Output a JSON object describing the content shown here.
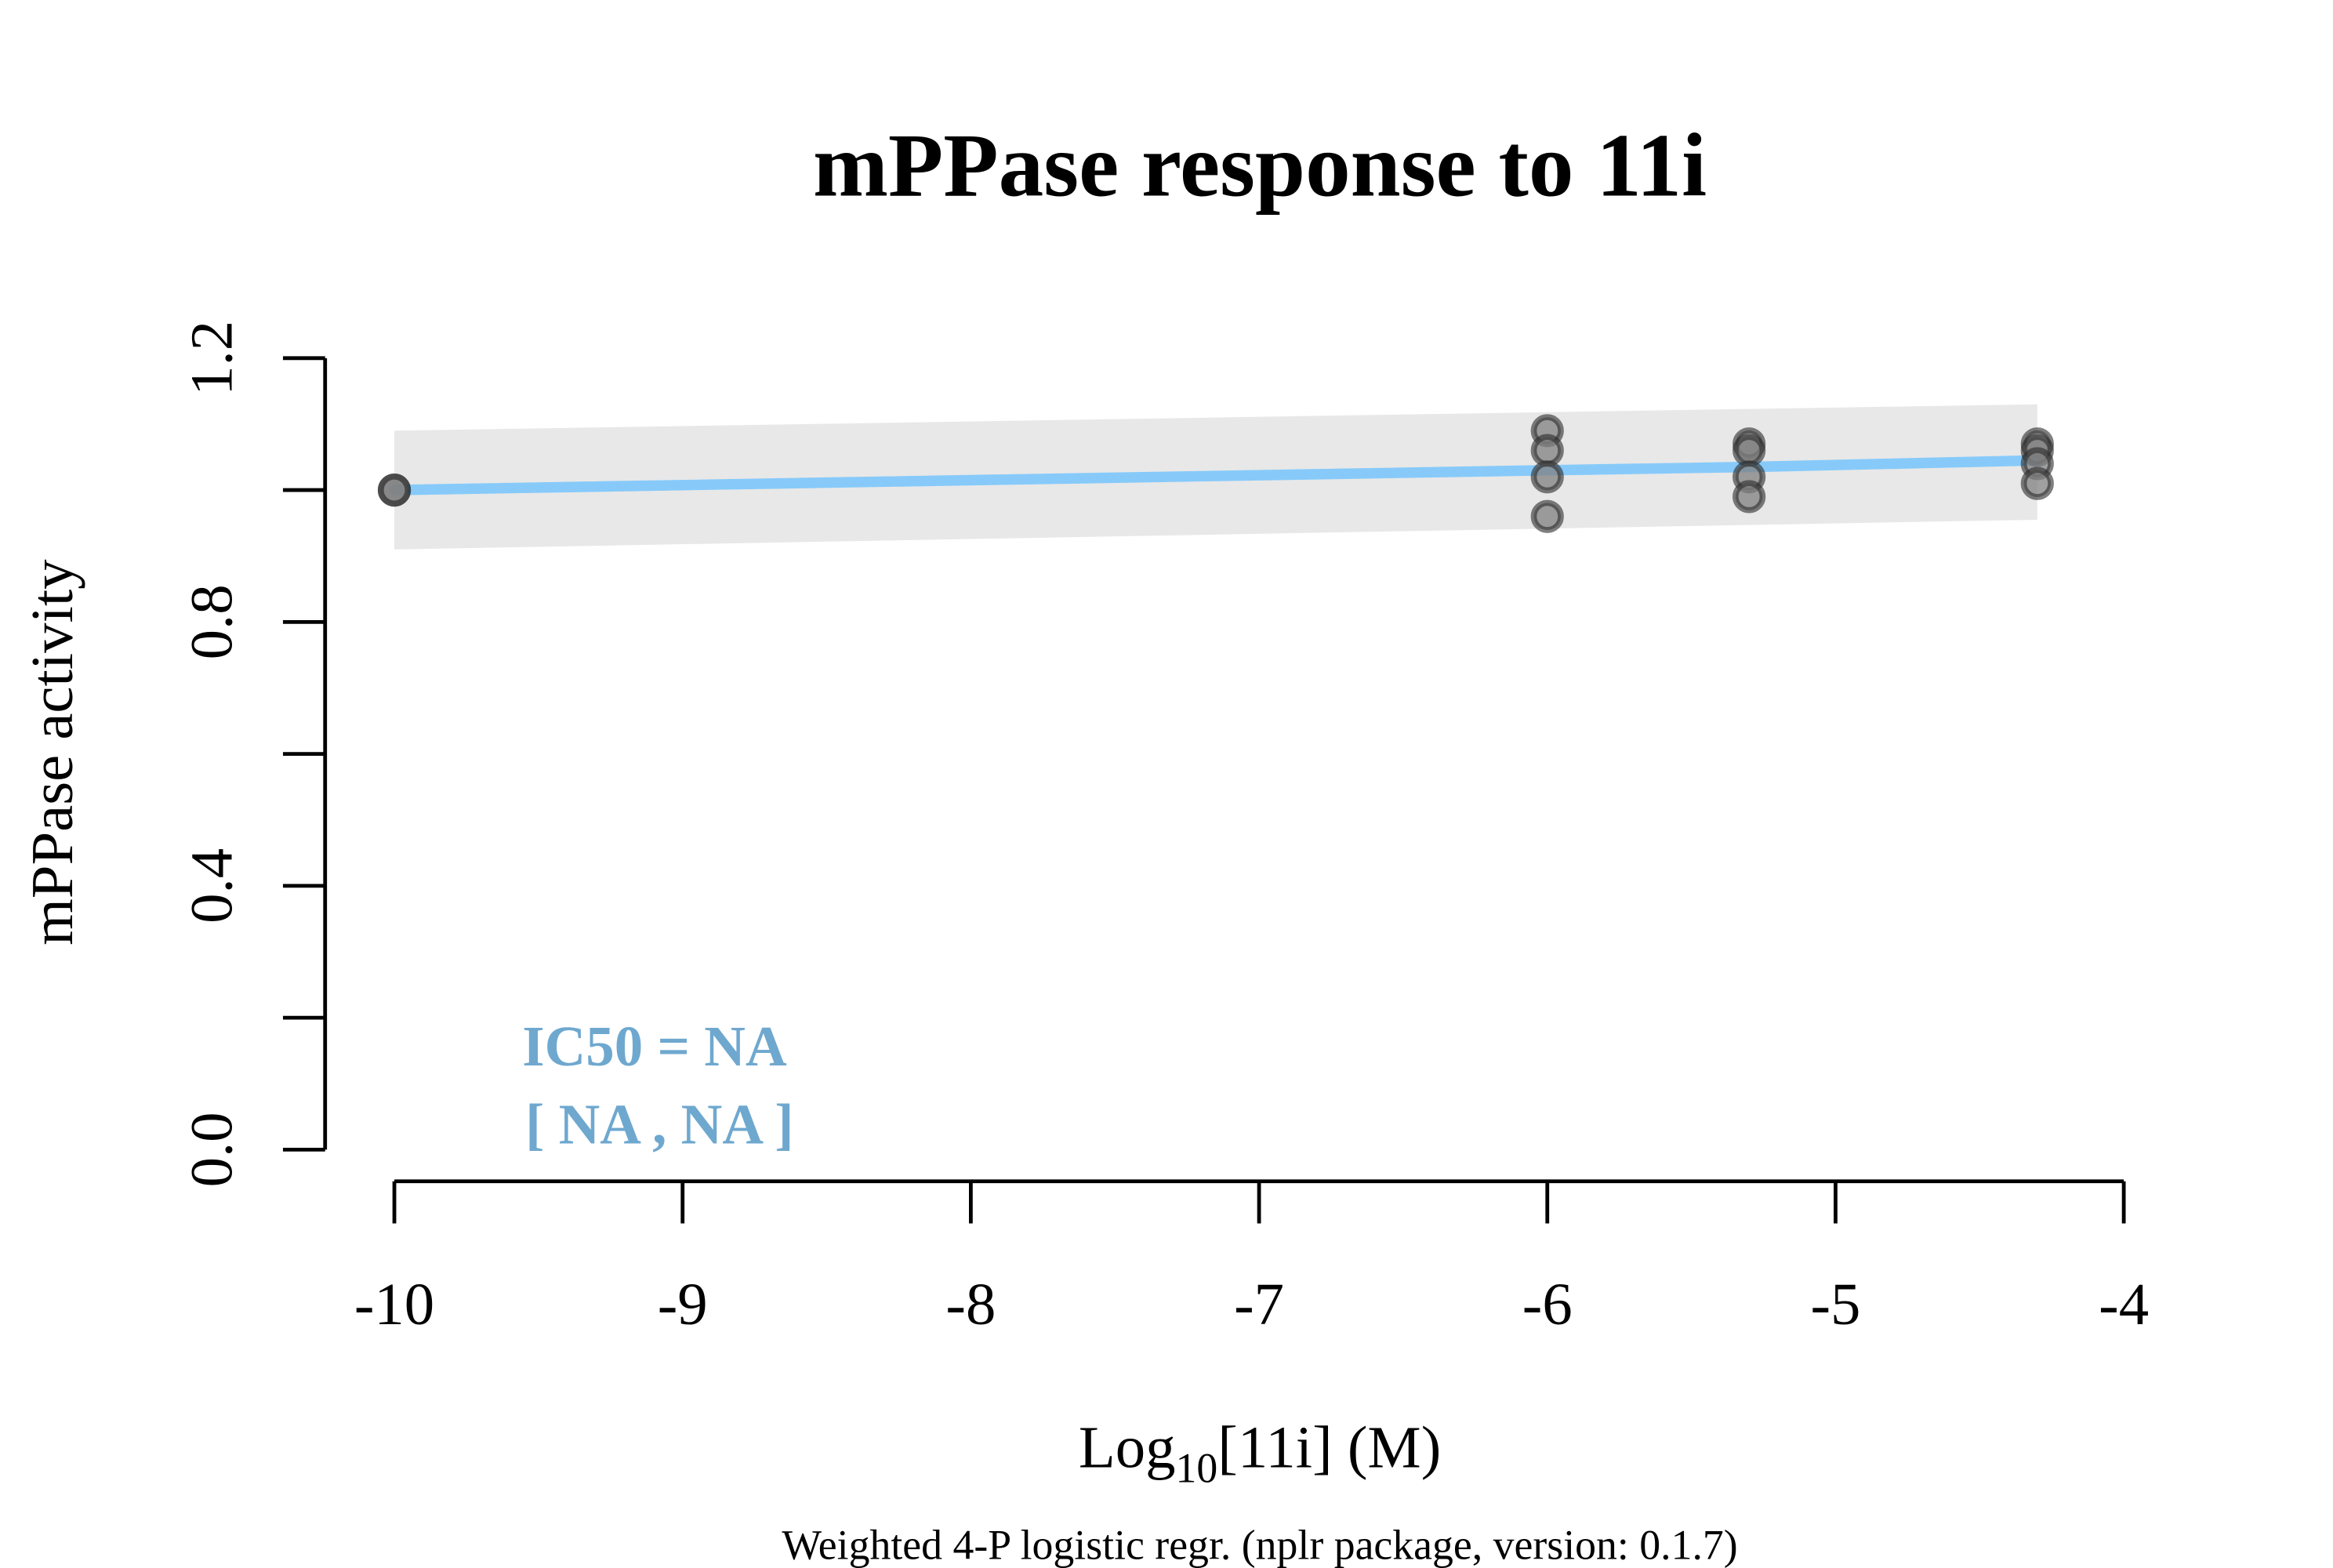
{
  "chart_data": {
    "type": "scatter",
    "title": "mPPase response to 11i",
    "xlabel": {
      "prefix": "Log",
      "subscript": "10",
      "suffix": "[11i] (M)"
    },
    "ylabel": "mPPase activity",
    "footnote": "Weighted 4-P logistic regr. (nplr package, version: 0.1.7)",
    "annotation": {
      "line1": "IC50 = NA",
      "line2": "[ NA , NA ]",
      "color": "#6fa8cf"
    },
    "xlim": [
      -10,
      -4
    ],
    "ylim": [
      0.0,
      1.2
    ],
    "x_ticks": [
      -10,
      -9,
      -8,
      -7,
      -6,
      -5,
      -4
    ],
    "x_tick_labels": [
      "-10",
      "-9",
      "-8",
      "-7",
      "-6",
      "-5",
      "-4"
    ],
    "y_ticks": [
      0.0,
      0.2,
      0.4,
      0.6,
      0.8,
      1.0,
      1.2
    ],
    "y_tick_labels": [
      "0.0",
      "",
      "0.4",
      "",
      "0.8",
      "",
      "1.2"
    ],
    "grid": false,
    "points": [
      {
        "x": -10,
        "y": 1.0
      },
      {
        "x": -10,
        "y": 1.0
      },
      {
        "x": -6,
        "y": 1.09
      },
      {
        "x": -6,
        "y": 1.06
      },
      {
        "x": -6,
        "y": 1.02
      },
      {
        "x": -6,
        "y": 0.96
      },
      {
        "x": -5.3,
        "y": 1.07
      },
      {
        "x": -5.3,
        "y": 1.06
      },
      {
        "x": -5.3,
        "y": 1.02
      },
      {
        "x": -5.3,
        "y": 0.99
      },
      {
        "x": -4.3,
        "y": 1.07
      },
      {
        "x": -4.3,
        "y": 1.06
      },
      {
        "x": -4.3,
        "y": 1.04
      },
      {
        "x": -4.3,
        "y": 1.01
      }
    ],
    "fit_line": {
      "x": [
        -10,
        -6,
        -5.3,
        -4.3
      ],
      "y": [
        1.0,
        1.03,
        1.035,
        1.045
      ],
      "color": "#87cafa"
    },
    "confidence_band": {
      "x": [
        -10,
        -4.3
      ],
      "upper": [
        1.09,
        1.13
      ],
      "lower": [
        0.91,
        0.955
      ],
      "color": "#e8e8e8"
    },
    "point_fill": "#808080",
    "point_stroke": "#2a2a2a"
  }
}
